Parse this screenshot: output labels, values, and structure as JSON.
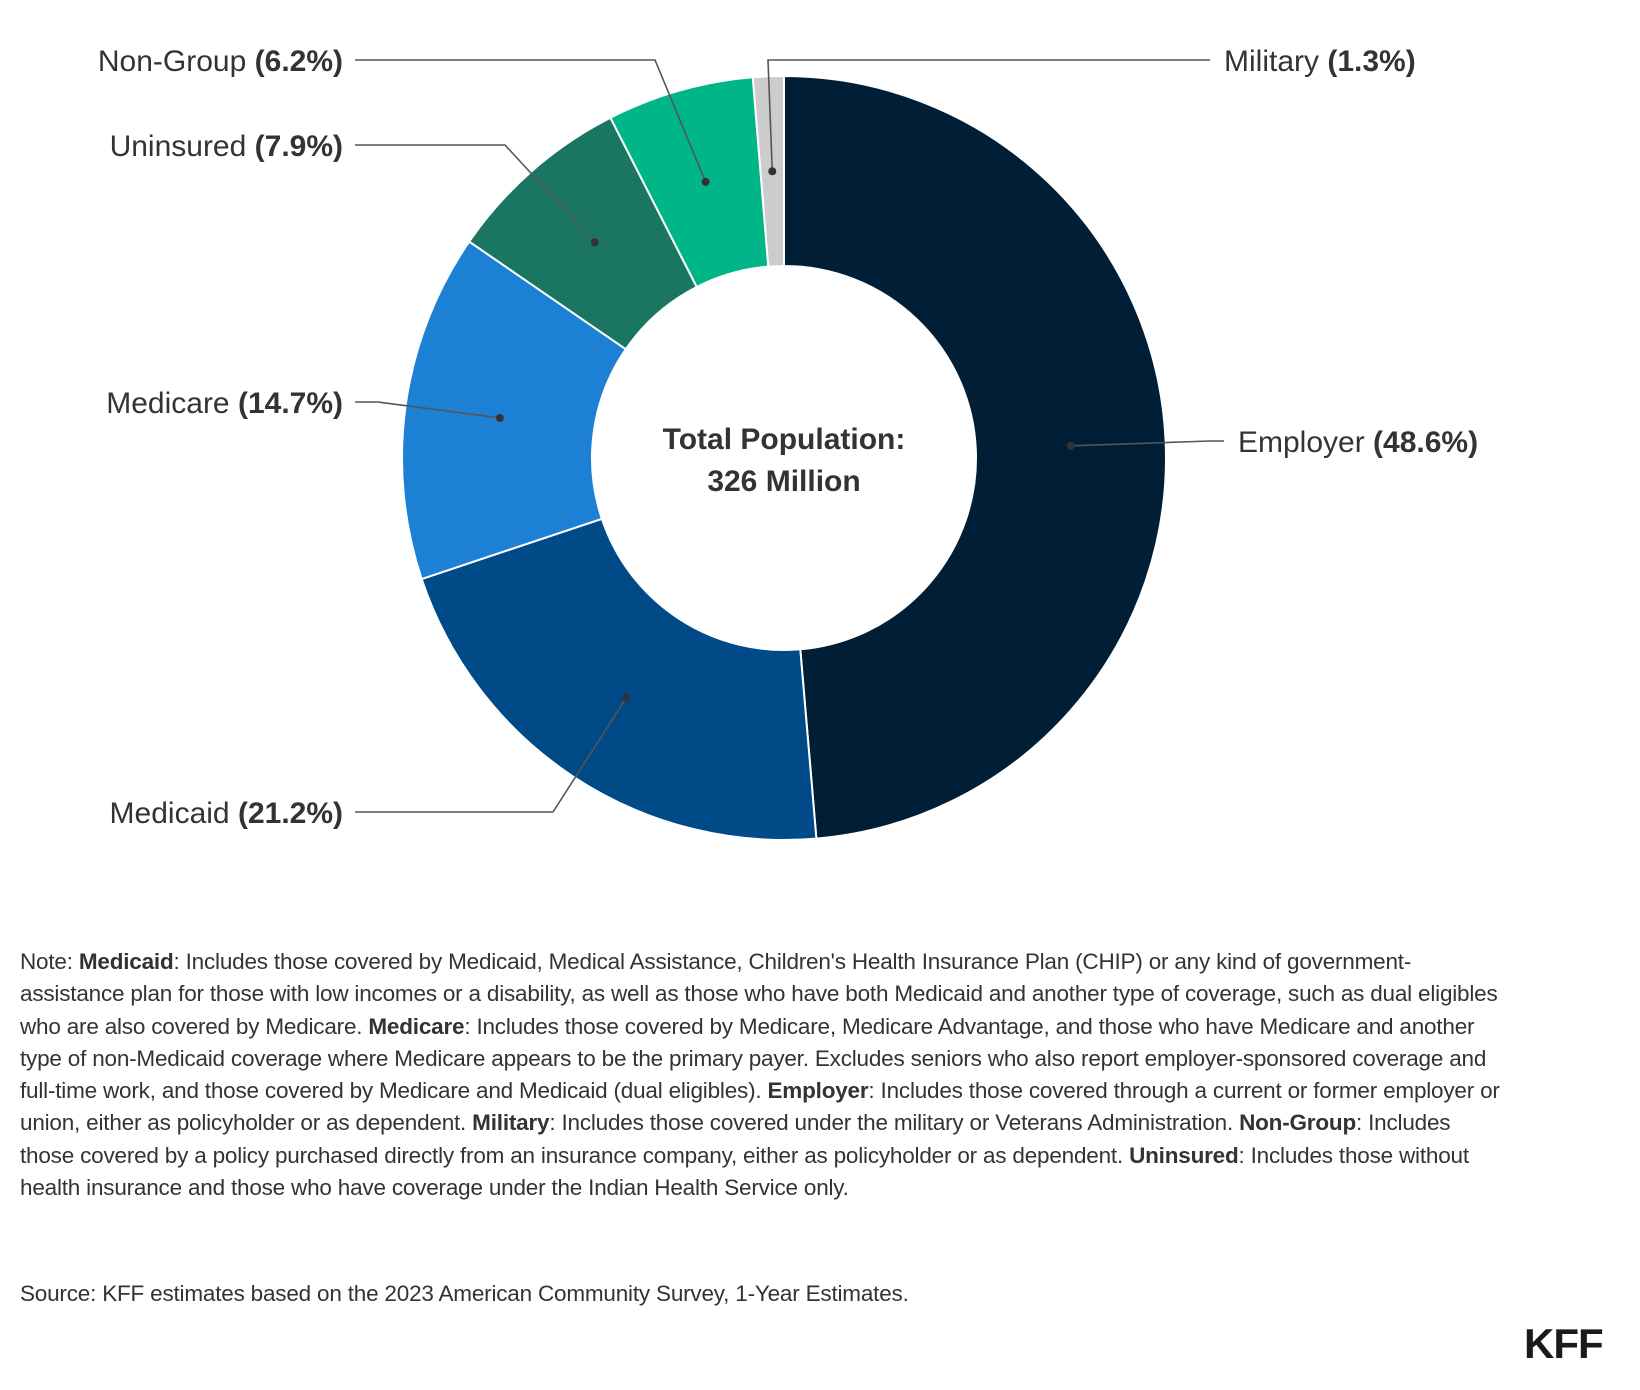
{
  "chart_data": {
    "type": "pie",
    "variant": "donut",
    "start": "top",
    "direction": "clockwise",
    "center_label": [
      "Total Population:",
      "326 Million"
    ],
    "slices": [
      {
        "name": "Employer",
        "value": 48.6,
        "label": "Employer",
        "pct_text": "(48.6%)",
        "color": "#001f36"
      },
      {
        "name": "Medicaid",
        "value": 21.2,
        "label": "Medicaid",
        "pct_text": "(21.2%)",
        "color": "#004a88"
      },
      {
        "name": "Medicare",
        "value": 14.7,
        "label": "Medicare",
        "pct_text": "(14.7%)",
        "color": "#1c80d4"
      },
      {
        "name": "Uninsured",
        "value": 7.9,
        "label": "Uninsured",
        "pct_text": "(7.9%)",
        "color": "#1a7563"
      },
      {
        "name": "Non-Group",
        "value": 6.2,
        "label": "Non-Group",
        "pct_text": "(6.2%)",
        "color": "#00b689"
      },
      {
        "name": "Military",
        "value": 1.3,
        "label": "Military",
        "pct_text": "(1.3%)",
        "color": "#cccccc"
      }
    ],
    "units": "percent"
  },
  "note": {
    "prefix": "Note: ",
    "segments": [
      {
        "bold": "Medicaid",
        "text": ": Includes those covered by Medicaid, Medical Assistance, Children's Health Insurance Plan (CHIP) or any kind of government-assistance plan for those with low incomes or a disability, as well as those who have both Medicaid and another type of coverage, such as dual eligibles who are also covered by Medicare. "
      },
      {
        "bold": "Medicare",
        "text": ": Includes those covered by Medicare, Medicare Advantage, and those who have Medicare and another type of non-Medicaid coverage where Medicare appears to be the primary payer. Excludes seniors who also report employer-sponsored coverage and full-time work, and those covered by Medicare and Medicaid (dual eligibles). "
      },
      {
        "bold": "Employer",
        "text": ": Includes those covered through a current or former employer or union, either as policyholder or as dependent. "
      },
      {
        "bold": "Military",
        "text": ": Includes those covered under the military or Veterans Administration. "
      },
      {
        "bold": "Non-Group",
        "text": ": Includes those covered by a policy purchased directly from an insurance company, either as policyholder or as dependent. "
      },
      {
        "bold": "Uninsured",
        "text": ": Includes those without health insurance and those who have coverage under the Indian Health Service only."
      }
    ]
  },
  "source": "Source: KFF estimates based on the 2023 American Community Survey, 1-Year Estimates.",
  "logo": "KFF"
}
